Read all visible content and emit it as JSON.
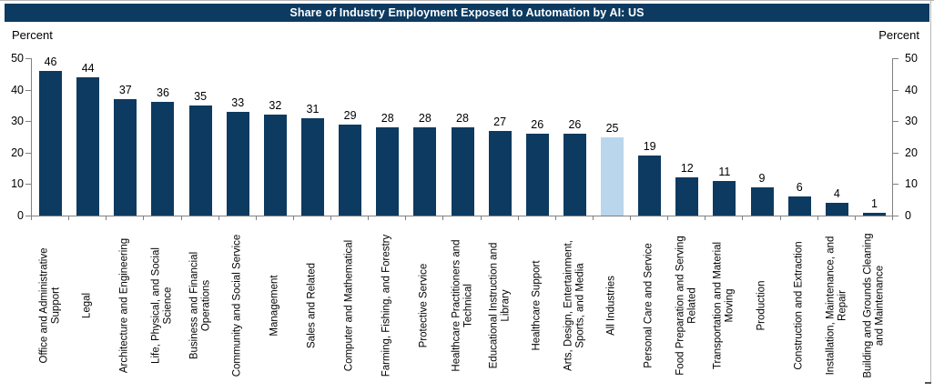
{
  "header": {
    "title": "Share of Industry Employment Exposed to Automation by AI: US"
  },
  "axes": {
    "left_unit_label": "Percent",
    "right_unit_label": "Percent"
  },
  "chart_data": {
    "type": "bar",
    "title": "Share of Industry Employment Exposed to Automation by AI: US",
    "xlabel": "",
    "ylabel_left": "Percent",
    "ylabel_right": "Percent",
    "ylim": [
      0,
      50
    ],
    "yticks": [
      0,
      10,
      20,
      30,
      40,
      50
    ],
    "grid": false,
    "legend": "none",
    "categories": [
      "Office and Administrative\nSupport",
      "Legal",
      "Architecture and Engineering",
      "Life, Physical, and Social\nScience",
      "Business and Financial\nOperations",
      "Community and Social Service",
      "Management",
      "Sales and Related",
      "Computer and Mathematical",
      "Farming, Fishing, and Forestry",
      "Protective Service",
      "Healthcare Practitioners and\nTechnical",
      "Educational Instruction and\nLibrary",
      "Healthcare Support",
      "Arts, Design, Entertainment,\nSports, and Media",
      "All Industries",
      "Personal Care and Service",
      "Food Preparation and Serving\nRelated",
      "Transportation and Material\nMoving",
      "Production",
      "Construction and Extraction",
      "Installation, Maintenance, and\nRepair",
      "Building and Grounds Cleaning\nand Maintenance"
    ],
    "values": [
      46,
      44,
      37,
      36,
      35,
      33,
      32,
      31,
      29,
      28,
      28,
      28,
      27,
      26,
      26,
      25,
      19,
      12,
      11,
      9,
      6,
      4,
      1
    ],
    "highlight_category": "All Industries",
    "colors": {
      "bar": "#0d3a60",
      "highlight_bar": "#b9d6ec",
      "axis": "#808080",
      "title_bar_bg": "#0d3a60",
      "title_text": "#ffffff",
      "value_label": "#000000"
    }
  }
}
